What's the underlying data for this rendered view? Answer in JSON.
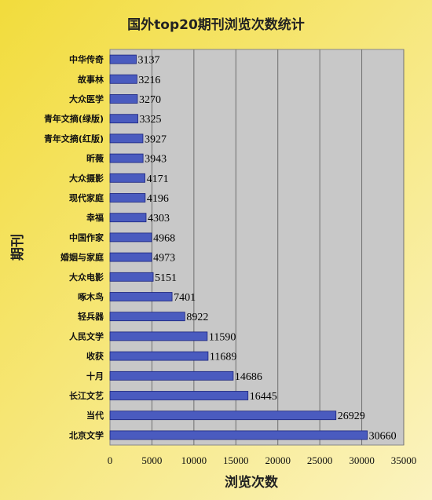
{
  "colors": {
    "bar_fill": "#4a5bbf",
    "bar_stroke": "#1a237e",
    "plot_bg": "#c8c8c8",
    "grid": "#707070",
    "bg_top": "#f2dc3c",
    "bg_bottom": "#fbf3c0"
  },
  "chart_data": {
    "type": "bar",
    "orientation": "horizontal",
    "title": "国外top20期刊浏览次数统计",
    "xlabel": "浏览次数",
    "ylabel": "期刊",
    "xlim": [
      0,
      35000
    ],
    "xticks": [
      0,
      5000,
      10000,
      15000,
      20000,
      25000,
      30000,
      35000
    ],
    "grid": true,
    "legend": "none",
    "data_labels": true,
    "categories": [
      "中华传奇",
      "故事林",
      "大众医学",
      "青年文摘(绿版)",
      "青年文摘(红版)",
      "昕薇",
      "大众摄影",
      "现代家庭",
      "幸福",
      "中国作家",
      "婚姻与家庭",
      "大众电影",
      "啄木鸟",
      "轻兵器",
      "人民文学",
      "收获",
      "十月",
      "长江文艺",
      "当代",
      "北京文学"
    ],
    "values": [
      3137,
      3216,
      3270,
      3325,
      3927,
      3943,
      4171,
      4196,
      4303,
      4968,
      4973,
      5151,
      7401,
      8922,
      11590,
      11689,
      14686,
      16445,
      26929,
      30660
    ]
  }
}
